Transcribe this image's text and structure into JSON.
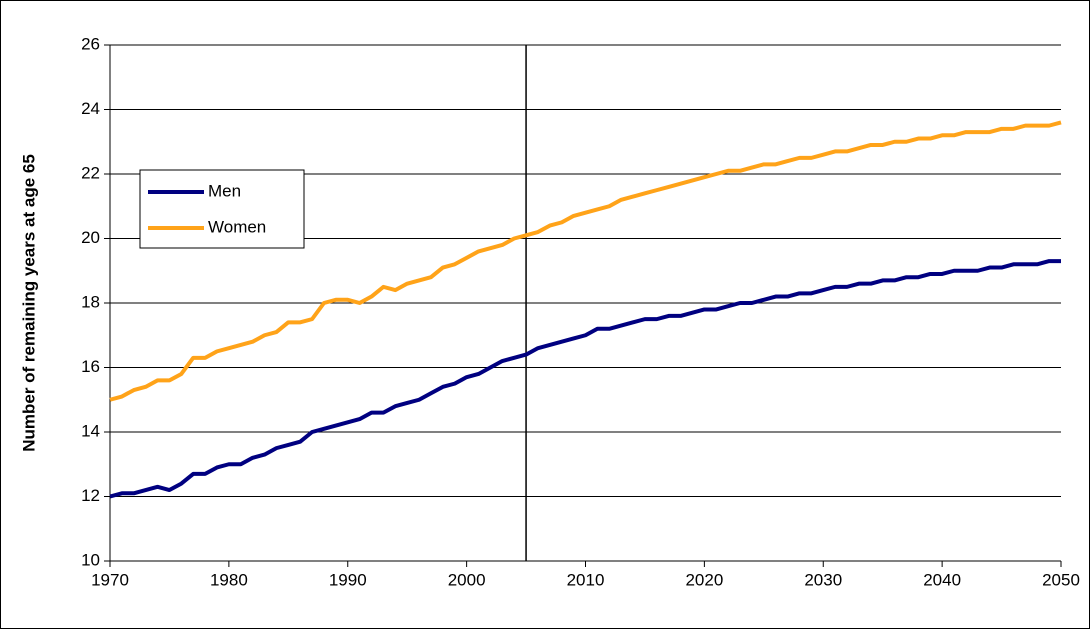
{
  "chart_data": {
    "type": "line",
    "y_label": "Number of remaining years at age 65",
    "x": [
      1970,
      1971,
      1972,
      1973,
      1974,
      1975,
      1976,
      1977,
      1978,
      1979,
      1980,
      1981,
      1982,
      1983,
      1984,
      1985,
      1986,
      1987,
      1988,
      1989,
      1990,
      1991,
      1992,
      1993,
      1994,
      1995,
      1996,
      1997,
      1998,
      1999,
      2000,
      2001,
      2002,
      2003,
      2004,
      2005,
      2006,
      2007,
      2008,
      2009,
      2010,
      2011,
      2012,
      2013,
      2014,
      2015,
      2016,
      2017,
      2018,
      2019,
      2020,
      2021,
      2022,
      2023,
      2024,
      2025,
      2026,
      2027,
      2028,
      2029,
      2030,
      2031,
      2032,
      2033,
      2034,
      2035,
      2036,
      2037,
      2038,
      2039,
      2040,
      2041,
      2042,
      2043,
      2044,
      2045,
      2046,
      2047,
      2048,
      2049,
      2050
    ],
    "series": [
      {
        "name": "Men",
        "color": "#000080",
        "values": [
          12.0,
          12.1,
          12.1,
          12.2,
          12.3,
          12.2,
          12.4,
          12.7,
          12.7,
          12.9,
          13.0,
          13.0,
          13.2,
          13.3,
          13.5,
          13.6,
          13.7,
          14.0,
          14.1,
          14.2,
          14.3,
          14.4,
          14.6,
          14.6,
          14.8,
          14.9,
          15.0,
          15.2,
          15.4,
          15.5,
          15.7,
          15.8,
          16.0,
          16.2,
          16.3,
          16.4,
          16.6,
          16.7,
          16.8,
          16.9,
          17.0,
          17.2,
          17.2,
          17.3,
          17.4,
          17.5,
          17.5,
          17.6,
          17.6,
          17.7,
          17.8,
          17.8,
          17.9,
          18.0,
          18.0,
          18.1,
          18.2,
          18.2,
          18.3,
          18.3,
          18.4,
          18.5,
          18.5,
          18.6,
          18.6,
          18.7,
          18.7,
          18.8,
          18.8,
          18.9,
          18.9,
          19.0,
          19.0,
          19.0,
          19.1,
          19.1,
          19.2,
          19.2,
          19.2,
          19.3,
          19.3
        ]
      },
      {
        "name": "Women",
        "color": "#ffa319",
        "values": [
          15.0,
          15.1,
          15.3,
          15.4,
          15.6,
          15.6,
          15.8,
          16.3,
          16.3,
          16.5,
          16.6,
          16.7,
          16.8,
          17.0,
          17.1,
          17.4,
          17.4,
          17.5,
          18.0,
          18.1,
          18.1,
          18.0,
          18.2,
          18.5,
          18.4,
          18.6,
          18.7,
          18.8,
          19.1,
          19.2,
          19.4,
          19.6,
          19.7,
          19.8,
          20.0,
          20.1,
          20.2,
          20.4,
          20.5,
          20.7,
          20.8,
          20.9,
          21.0,
          21.2,
          21.3,
          21.4,
          21.5,
          21.6,
          21.7,
          21.8,
          21.9,
          22.0,
          22.1,
          22.1,
          22.2,
          22.3,
          22.3,
          22.4,
          22.5,
          22.5,
          22.6,
          22.7,
          22.7,
          22.8,
          22.9,
          22.9,
          23.0,
          23.0,
          23.1,
          23.1,
          23.2,
          23.2,
          23.3,
          23.3,
          23.3,
          23.4,
          23.4,
          23.5,
          23.5,
          23.5,
          23.6
        ]
      }
    ],
    "xlim": [
      1970,
      2050
    ],
    "xticks": [
      1970,
      1980,
      1990,
      2000,
      2010,
      2020,
      2030,
      2040,
      2050
    ],
    "ylim": [
      10,
      26
    ],
    "yticks": [
      10,
      12,
      14,
      16,
      18,
      20,
      22,
      24,
      26
    ],
    "vline_x": 2005,
    "grid": true,
    "legend": "left"
  }
}
